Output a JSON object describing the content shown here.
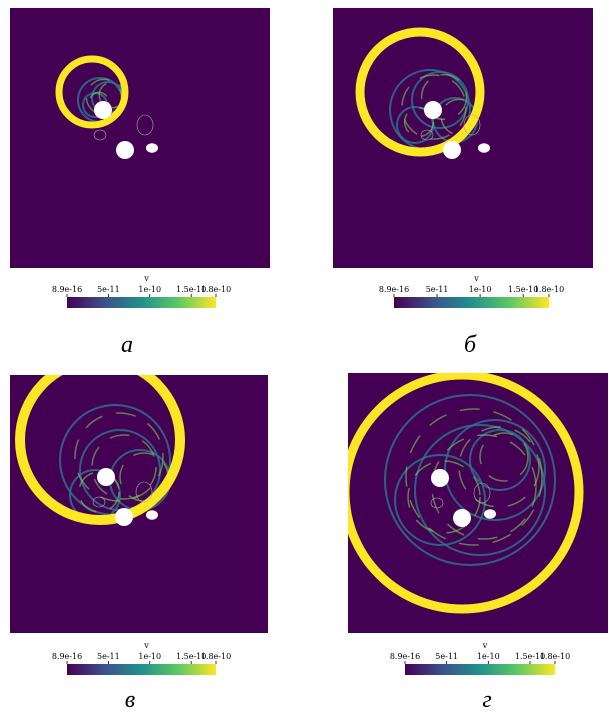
{
  "panels": [
    {
      "label": "а",
      "colorbar": {
        "title": "v",
        "range": [
          8.9e-16,
          1.8e-10
        ],
        "ticks": [
          {
            "value": 8.9e-16,
            "label": "8.9e-16"
          },
          {
            "value": 5e-11,
            "label": "5e-11"
          },
          {
            "value": 1e-10,
            "label": "1e-10"
          },
          {
            "value": 1.5e-10,
            "label": "1.5e-10"
          },
          {
            "value": 1.8e-10,
            "label": "1.8e-10"
          }
        ]
      }
    },
    {
      "label": "б",
      "colorbar": {
        "title": "v",
        "range": [
          8.9e-16,
          1.8e-10
        ],
        "ticks": [
          {
            "value": 8.9e-16,
            "label": "8.9e-16"
          },
          {
            "value": 5e-11,
            "label": "5e-11"
          },
          {
            "value": 1e-10,
            "label": "1e-10"
          },
          {
            "value": 1.5e-10,
            "label": "1.5e-10"
          },
          {
            "value": 1.8e-10,
            "label": "1.8e-10"
          }
        ]
      }
    },
    {
      "label": "в",
      "colorbar": {
        "title": "v",
        "range": [
          8.9e-16,
          1.8e-10
        ],
        "ticks": [
          {
            "value": 8.9e-16,
            "label": "8.9e-16"
          },
          {
            "value": 5e-11,
            "label": "5e-11"
          },
          {
            "value": 1e-10,
            "label": "1e-10"
          },
          {
            "value": 1.5e-10,
            "label": "1.5e-10"
          },
          {
            "value": 1.8e-10,
            "label": "1.8e-10"
          }
        ]
      }
    },
    {
      "label": "г",
      "colorbar": {
        "title": "v",
        "range": [
          8.9e-16,
          1.8e-10
        ],
        "ticks": [
          {
            "value": 8.9e-16,
            "label": "8.9e-16"
          },
          {
            "value": 5e-11,
            "label": "5e-11"
          },
          {
            "value": 1e-10,
            "label": "1e-10"
          },
          {
            "value": 1.5e-10,
            "label": "1.5e-10"
          },
          {
            "value": 1.8e-10,
            "label": "1.8e-10"
          }
        ]
      }
    }
  ]
}
